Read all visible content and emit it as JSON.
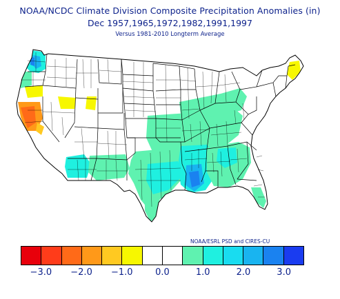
{
  "title": {
    "line1": "NOAA/NCDC Climate Division Composite Precipitation Anomalies (in)",
    "line2": "Dec   1957,1965,1972,1982,1991,1997",
    "line3": "Versus 1981-2010 Longterm Average"
  },
  "credit": "NOAA/ESRL PSD and CIRES-CU",
  "colors": {
    "neg3": "#e8000b",
    "neg2_5": "#ff3c1a",
    "neg2": "#ff6a18",
    "neg1_5": "#ff9919",
    "neg1": "#ffc921",
    "neg0_5": "#f7f700",
    "zero_a": "#ffffff",
    "zero_b": "#ffffff",
    "pos0_5": "#5ff2b0",
    "pos1": "#1ff0e0",
    "pos1_5": "#19dcf0",
    "pos2": "#19b4f0",
    "pos2_5": "#1a82f0",
    "pos3": "#1a3cf0"
  },
  "colorbar_ticks": [
    "−3.0",
    "−2.0",
    "−1.0",
    "0.0",
    "1.0",
    "2.0",
    "3.0"
  ],
  "colorbar_tick_values": [
    -3,
    -2,
    -1,
    0,
    1,
    2,
    3
  ],
  "colorbar_range": [
    -3.5,
    3.5
  ]
}
